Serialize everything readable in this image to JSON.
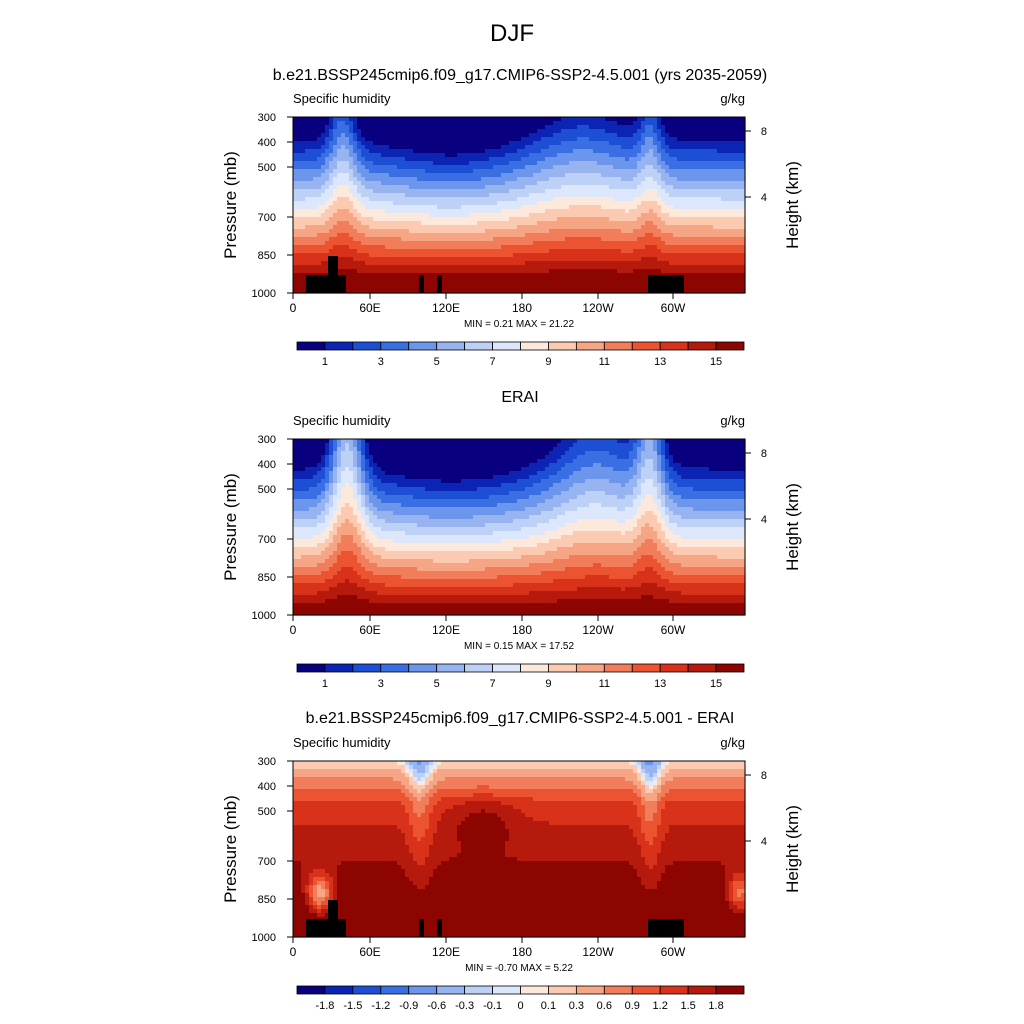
{
  "figure": {
    "title": "DJF"
  },
  "chart_data": [
    {
      "type": "heatmap",
      "title": "b.e21.BSSP245cmip6.f09_g17.CMIP6-SSP2-4.5.001 (yrs 2035-2059)",
      "left_label": "Specific humidity",
      "right_label": "g/kg",
      "ylabel": "Pressure (mb)",
      "ylabel_right": "Height (km)",
      "xticks": [
        "0",
        "60E",
        "120E",
        "180",
        "120W",
        "60W"
      ],
      "yticks": [
        "300",
        "400",
        "500",
        "700",
        "850",
        "1000"
      ],
      "yticks_right": [
        "8",
        "4"
      ],
      "min_max_text": "MIN =   0.21  MAX =  21.22",
      "min": 0.21,
      "max": 21.22,
      "colorbar_labels": [
        "1",
        "3",
        "5",
        "7",
        "9",
        "11",
        "13",
        "15"
      ],
      "colorbar_levels": 16
    },
    {
      "type": "heatmap",
      "title": "ERAI",
      "left_label": "Specific humidity",
      "right_label": "g/kg",
      "ylabel": "Pressure (mb)",
      "ylabel_right": "Height (km)",
      "xticks": [
        "0",
        "60E",
        "120E",
        "180",
        "120W",
        "60W"
      ],
      "yticks": [
        "300",
        "400",
        "500",
        "700",
        "850",
        "1000"
      ],
      "yticks_right": [
        "8",
        "4"
      ],
      "min_max_text": "MIN =   0.15  MAX =  17.52",
      "min": 0.15,
      "max": 17.52,
      "colorbar_labels": [
        "1",
        "3",
        "5",
        "7",
        "9",
        "11",
        "13",
        "15"
      ],
      "colorbar_levels": 16
    },
    {
      "type": "heatmap",
      "title": "b.e21.BSSP245cmip6.f09_g17.CMIP6-SSP2-4.5.001 - ERAI",
      "left_label": "Specific humidity",
      "right_label": "g/kg",
      "ylabel": "Pressure (mb)",
      "ylabel_right": "Height (km)",
      "xticks": [
        "0",
        "60E",
        "120E",
        "180",
        "120W",
        "60W"
      ],
      "yticks": [
        "300",
        "400",
        "500",
        "700",
        "850",
        "1000"
      ],
      "yticks_right": [
        "8",
        "4"
      ],
      "min_max_text": "MIN =  -0.70  MAX =   5.22",
      "min": -0.7,
      "max": 5.22,
      "colorbar_labels": [
        "-1.8",
        "-1.5",
        "-1.2",
        "-0.9",
        "-0.6",
        "-0.3",
        "-0.1",
        "0",
        "0.1",
        "0.3",
        "0.6",
        "0.9",
        "1.2",
        "1.5",
        "1.8"
      ],
      "colorbar_levels": 16
    }
  ],
  "palette": [
    "#08007f",
    "#0b24b3",
    "#1d4fd4",
    "#3a6fe4",
    "#6c95ec",
    "#97b4f0",
    "#bdd0f5",
    "#dce7fb",
    "#fde8dc",
    "#fbcab0",
    "#f7a685",
    "#f27d5b",
    "#ec5431",
    "#d8331a",
    "#b61a0c",
    "#8c0500"
  ]
}
